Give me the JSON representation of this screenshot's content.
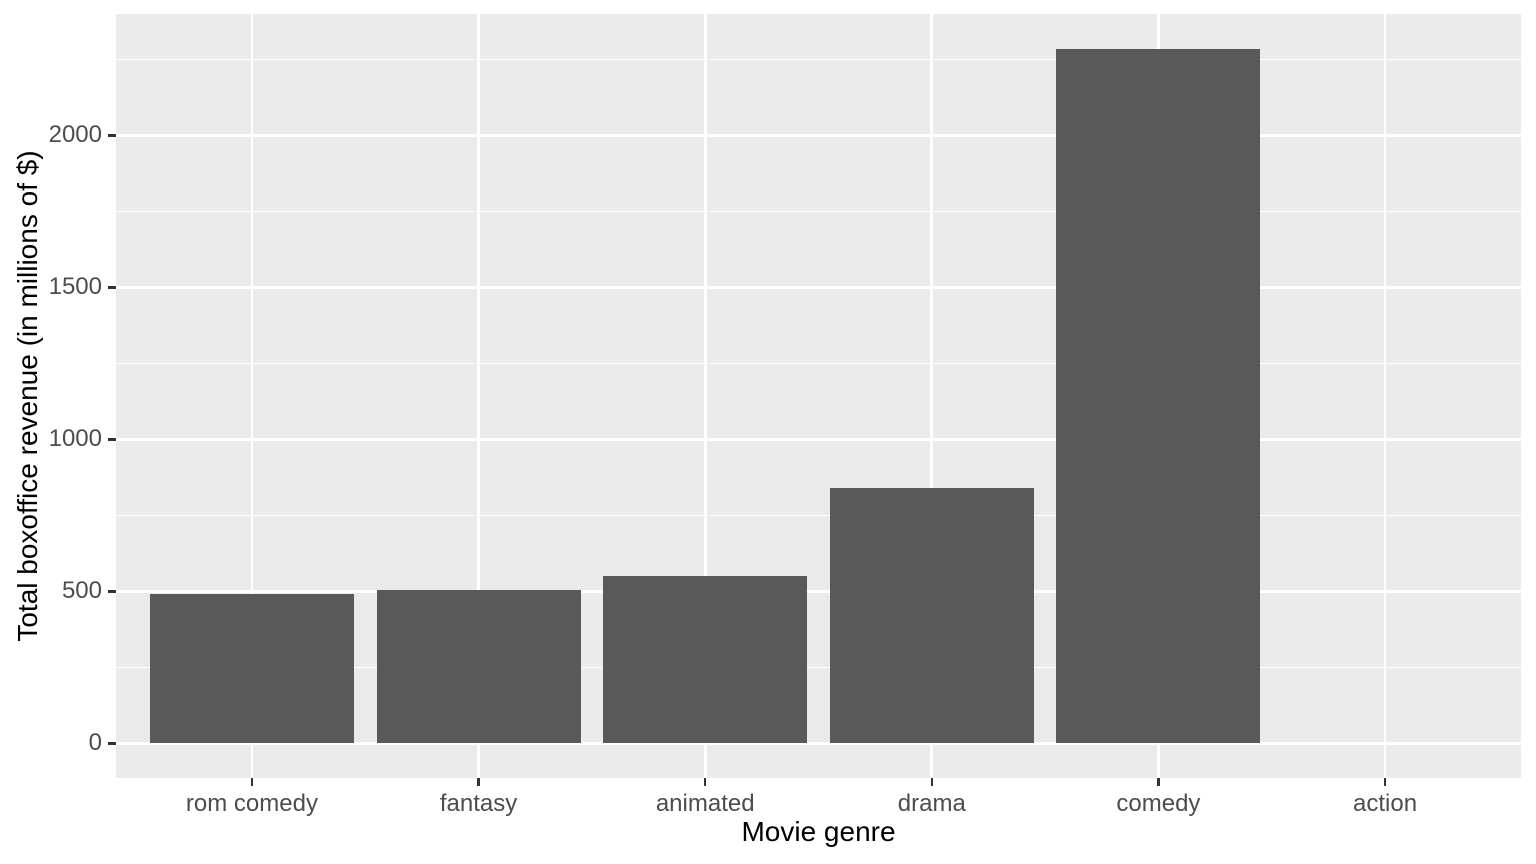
{
  "chart_data": {
    "type": "bar",
    "title": "",
    "xlabel": "Movie genre",
    "ylabel": "Total boxoffice revenue (in millions of $)",
    "categories": [
      "rom comedy",
      "fantasy",
      "animated",
      "drama",
      "comedy",
      "action"
    ],
    "values": [
      490,
      505,
      550,
      840,
      2285,
      0
    ],
    "series_name": "Total boxoffice revenue",
    "y_ticks": [
      0,
      500,
      1000,
      1500,
      2000
    ],
    "y_tick_labels": [
      "0",
      "500",
      "1000",
      "1500",
      "2000"
    ],
    "y_minor_ticks": [
      250,
      750,
      1250,
      1750,
      2250
    ],
    "ylim": [
      0,
      2285
    ],
    "y_expansion_fraction": 0.05,
    "bar_width_fraction": 0.9,
    "grid": true,
    "legend_position": "none",
    "colors": {
      "bar_fill": "#595959",
      "panel_background": "#EBEBEB",
      "gridline": "#FFFFFF",
      "tick_mark": "#333333",
      "tick_label_text": "#4D4D4D",
      "axis_title_text": "#000000",
      "plot_background": "#FFFFFF"
    }
  }
}
